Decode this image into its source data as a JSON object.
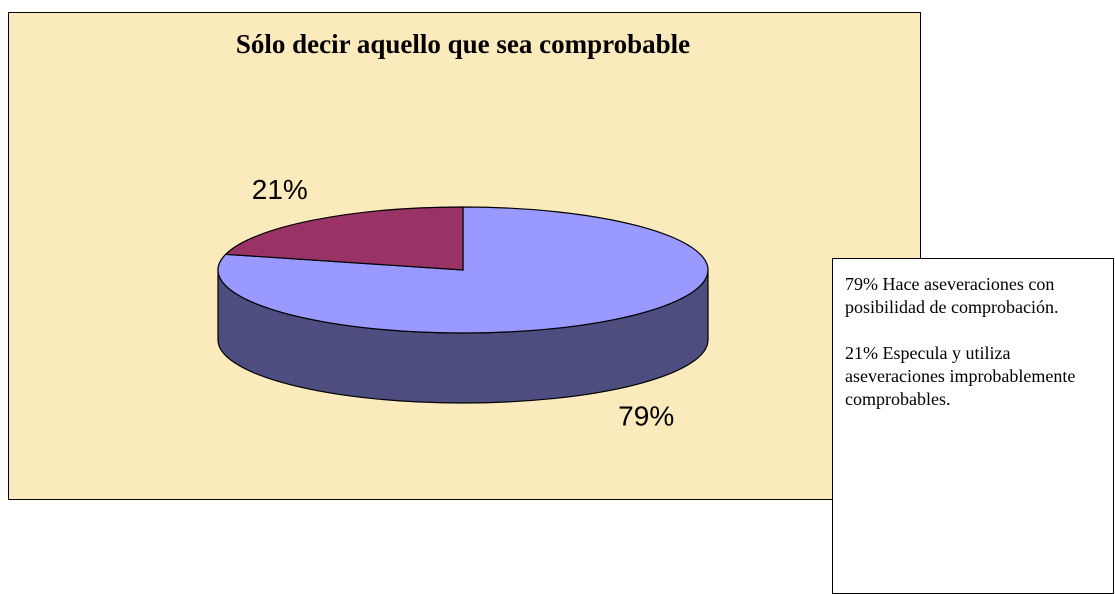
{
  "chart_data": {
    "type": "pie",
    "title": "Sólo decir aquello que sea comprobable",
    "values": [
      79,
      21
    ],
    "value_labels": [
      "79%",
      "21%"
    ],
    "colors": [
      "#9999ff",
      "#993366"
    ],
    "annotations": [
      "79% Hace aseveraciones con posibilidad de comprobación.",
      "21% Especula y utiliza aseveraciones improbablemente comprobables."
    ]
  }
}
